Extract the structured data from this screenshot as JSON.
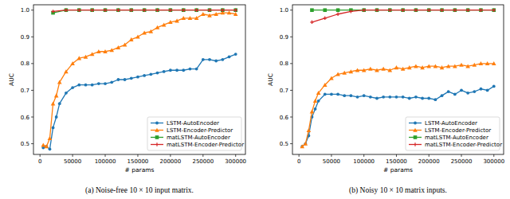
{
  "chart_data": [
    {
      "type": "line",
      "title": "(a) Noise-free 10 × 10 input matrix.",
      "x_label": "# params",
      "y_label": "AUC",
      "xlim": [
        -10000,
        315000
      ],
      "ylim": [
        0.46,
        1.02
      ],
      "xticks": [
        0,
        50000,
        100000,
        150000,
        200000,
        250000,
        300000
      ],
      "yticks": [
        0.5,
        0.6,
        0.7,
        0.8,
        0.9,
        {
          "value": 1,
          "label": "1.0"
        }
      ],
      "grid": false,
      "legend": "lower right",
      "series": [
        {
          "name": "LSTM-AutoEncoder",
          "color": "#1f77b4",
          "marker": "circle",
          "x": [
            5000,
            10000,
            15000,
            20000,
            25000,
            30000,
            40000,
            50000,
            60000,
            70000,
            80000,
            90000,
            100000,
            110000,
            120000,
            130000,
            140000,
            150000,
            160000,
            170000,
            180000,
            190000,
            200000,
            210000,
            220000,
            230000,
            240000,
            250000,
            260000,
            270000,
            280000,
            290000,
            300000
          ],
          "values": [
            0.485,
            0.49,
            0.48,
            0.56,
            0.6,
            0.65,
            0.69,
            0.71,
            0.72,
            0.72,
            0.72,
            0.725,
            0.725,
            0.73,
            0.74,
            0.74,
            0.745,
            0.75,
            0.755,
            0.76,
            0.765,
            0.77,
            0.775,
            0.775,
            0.775,
            0.78,
            0.78,
            0.815,
            0.815,
            0.81,
            0.815,
            0.825,
            0.835
          ]
        },
        {
          "name": "LSTM-Encoder-Predictor",
          "color": "#ff7f0e",
          "marker": "triangle",
          "x": [
            5000,
            10000,
            15000,
            20000,
            25000,
            30000,
            40000,
            50000,
            60000,
            70000,
            80000,
            90000,
            100000,
            110000,
            120000,
            130000,
            140000,
            150000,
            160000,
            170000,
            180000,
            190000,
            200000,
            210000,
            220000,
            230000,
            240000,
            250000,
            260000,
            270000,
            280000,
            290000,
            300000
          ],
          "values": [
            0.495,
            0.49,
            0.52,
            0.65,
            0.68,
            0.73,
            0.77,
            0.8,
            0.82,
            0.825,
            0.835,
            0.845,
            0.845,
            0.85,
            0.86,
            0.87,
            0.89,
            0.9,
            0.915,
            0.92,
            0.935,
            0.945,
            0.955,
            0.96,
            0.97,
            0.97,
            0.97,
            0.985,
            0.98,
            0.985,
            0.99,
            0.99,
            0.985
          ]
        },
        {
          "name": "matLSTM-AutoEncoder",
          "color": "#2ca02c",
          "marker": "square",
          "x": [
            20000,
            40000,
            60000,
            80000,
            100000,
            120000,
            140000,
            160000,
            180000,
            200000,
            220000,
            240000,
            260000,
            280000,
            300000
          ],
          "values": [
            0.99,
            1,
            1,
            1,
            1,
            1,
            1,
            1,
            1,
            1,
            1,
            1,
            1,
            1,
            1
          ]
        },
        {
          "name": "matLSTM-Encoder-Predictor",
          "color": "#d62728",
          "marker": "plus",
          "x": [
            20000,
            40000,
            60000,
            80000,
            100000,
            120000,
            140000,
            160000,
            180000,
            200000,
            220000,
            240000,
            260000,
            280000,
            300000
          ],
          "values": [
            0.995,
            1,
            1,
            1,
            1,
            1,
            1,
            1,
            1,
            1,
            1,
            1,
            1,
            1,
            1
          ]
        }
      ]
    },
    {
      "type": "line",
      "title": "(b) Noisy 10 × 10 matrix inputs.",
      "x_label": "# params",
      "y_label": "AUC",
      "xlim": [
        -10000,
        315000
      ],
      "ylim": [
        0.46,
        1.02
      ],
      "xticks": [
        0,
        50000,
        100000,
        150000,
        200000,
        250000,
        300000
      ],
      "yticks": [
        0.5,
        0.6,
        0.7,
        0.8,
        0.9,
        {
          "value": 1,
          "label": "1.0"
        }
      ],
      "grid": false,
      "legend": "lower right",
      "series": [
        {
          "name": "LSTM-AutoEncoder",
          "color": "#1f77b4",
          "marker": "circle",
          "x": [
            5000,
            10000,
            15000,
            20000,
            25000,
            30000,
            40000,
            50000,
            60000,
            70000,
            80000,
            90000,
            100000,
            110000,
            120000,
            130000,
            140000,
            150000,
            160000,
            170000,
            180000,
            190000,
            200000,
            210000,
            220000,
            230000,
            240000,
            250000,
            260000,
            270000,
            280000,
            290000,
            300000
          ],
          "values": [
            0.49,
            0.5,
            0.53,
            0.6,
            0.63,
            0.66,
            0.685,
            0.685,
            0.685,
            0.68,
            0.68,
            0.675,
            0.68,
            0.675,
            0.67,
            0.675,
            0.675,
            0.675,
            0.675,
            0.67,
            0.675,
            0.67,
            0.67,
            0.665,
            0.68,
            0.695,
            0.685,
            0.7,
            0.69,
            0.695,
            0.705,
            0.7,
            0.715
          ]
        },
        {
          "name": "LSTM-Encoder-Predictor",
          "color": "#ff7f0e",
          "marker": "triangle",
          "x": [
            5000,
            10000,
            15000,
            20000,
            25000,
            30000,
            40000,
            50000,
            60000,
            70000,
            80000,
            90000,
            100000,
            110000,
            120000,
            130000,
            140000,
            150000,
            160000,
            170000,
            180000,
            190000,
            200000,
            210000,
            220000,
            230000,
            240000,
            250000,
            260000,
            270000,
            280000,
            290000,
            300000
          ],
          "values": [
            0.49,
            0.5,
            0.55,
            0.62,
            0.66,
            0.69,
            0.72,
            0.745,
            0.76,
            0.765,
            0.77,
            0.775,
            0.775,
            0.78,
            0.775,
            0.78,
            0.775,
            0.785,
            0.78,
            0.785,
            0.79,
            0.785,
            0.79,
            0.79,
            0.785,
            0.79,
            0.79,
            0.795,
            0.79,
            0.795,
            0.8,
            0.8,
            0.8
          ]
        },
        {
          "name": "matLSTM-AutoEncoder",
          "color": "#2ca02c",
          "marker": "square",
          "x": [
            20000,
            40000,
            60000,
            80000,
            100000,
            120000,
            140000,
            160000,
            180000,
            200000,
            220000,
            240000,
            260000,
            280000,
            300000
          ],
          "values": [
            1,
            1,
            1,
            1,
            1,
            1,
            1,
            1,
            1,
            1,
            1,
            1,
            1,
            1,
            1
          ]
        },
        {
          "name": "matLSTM-Encoder-Predictor",
          "color": "#d62728",
          "marker": "plus",
          "x": [
            20000,
            40000,
            60000,
            80000,
            100000,
            120000,
            140000,
            160000,
            180000,
            200000,
            220000,
            240000,
            260000,
            280000,
            300000
          ],
          "values": [
            0.955,
            0.97,
            0.985,
            0.995,
            1,
            1,
            1,
            1,
            1,
            1,
            1,
            1,
            1,
            1,
            1
          ]
        }
      ]
    }
  ]
}
